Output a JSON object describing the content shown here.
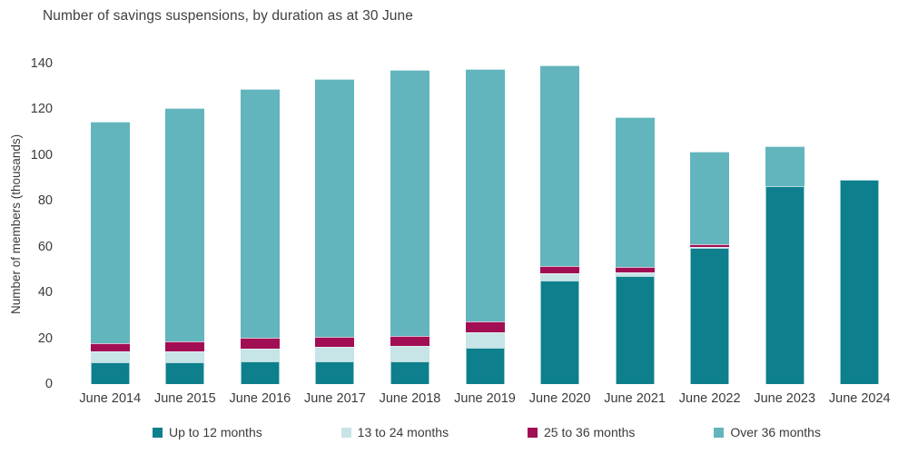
{
  "chart_data": {
    "type": "bar",
    "stacked": true,
    "title": "Number of savings suspensions, by duration as at 30 June",
    "xlabel": "",
    "ylabel": "Number of members (thousands)",
    "ylim": [
      0,
      140
    ],
    "yticks": [
      0,
      20,
      40,
      60,
      80,
      100,
      120,
      140
    ],
    "grid": false,
    "legend_position": "bottom",
    "categories": [
      "June 2014",
      "June 2015",
      "June 2016",
      "June 2017",
      "June 2018",
      "June 2019",
      "June 2020",
      "June 2021",
      "June 2022",
      "June 2023",
      "June 2024"
    ],
    "series": [
      {
        "name": "Up to 12 months",
        "color": "#0e7f8c",
        "values": [
          9,
          9,
          9.5,
          9.5,
          9.5,
          15.5,
          45,
          47,
          59,
          86,
          89
        ]
      },
      {
        "name": "13 to 24 months",
        "color": "#c7e4e6",
        "values": [
          4.5,
          4.5,
          5,
          6,
          6.5,
          6.5,
          2.5,
          1,
          0.3,
          0,
          0
        ]
      },
      {
        "name": "25 to 36 months",
        "color": "#a20e54",
        "values": [
          3,
          4,
          4.5,
          4,
          4,
          4,
          3,
          2,
          0.7,
          0,
          0
        ]
      },
      {
        "name": "Over 36 months",
        "color": "#63b5bd",
        "values": [
          96.5,
          101.5,
          108.5,
          112,
          115.5,
          110,
          87,
          65,
          40,
          17,
          0
        ]
      }
    ],
    "totals": [
      113,
      119,
      127.5,
      131.5,
      135.5,
      136,
      137.5,
      115,
      100,
      103,
      89
    ],
    "text_color": "#3b3b3b"
  }
}
